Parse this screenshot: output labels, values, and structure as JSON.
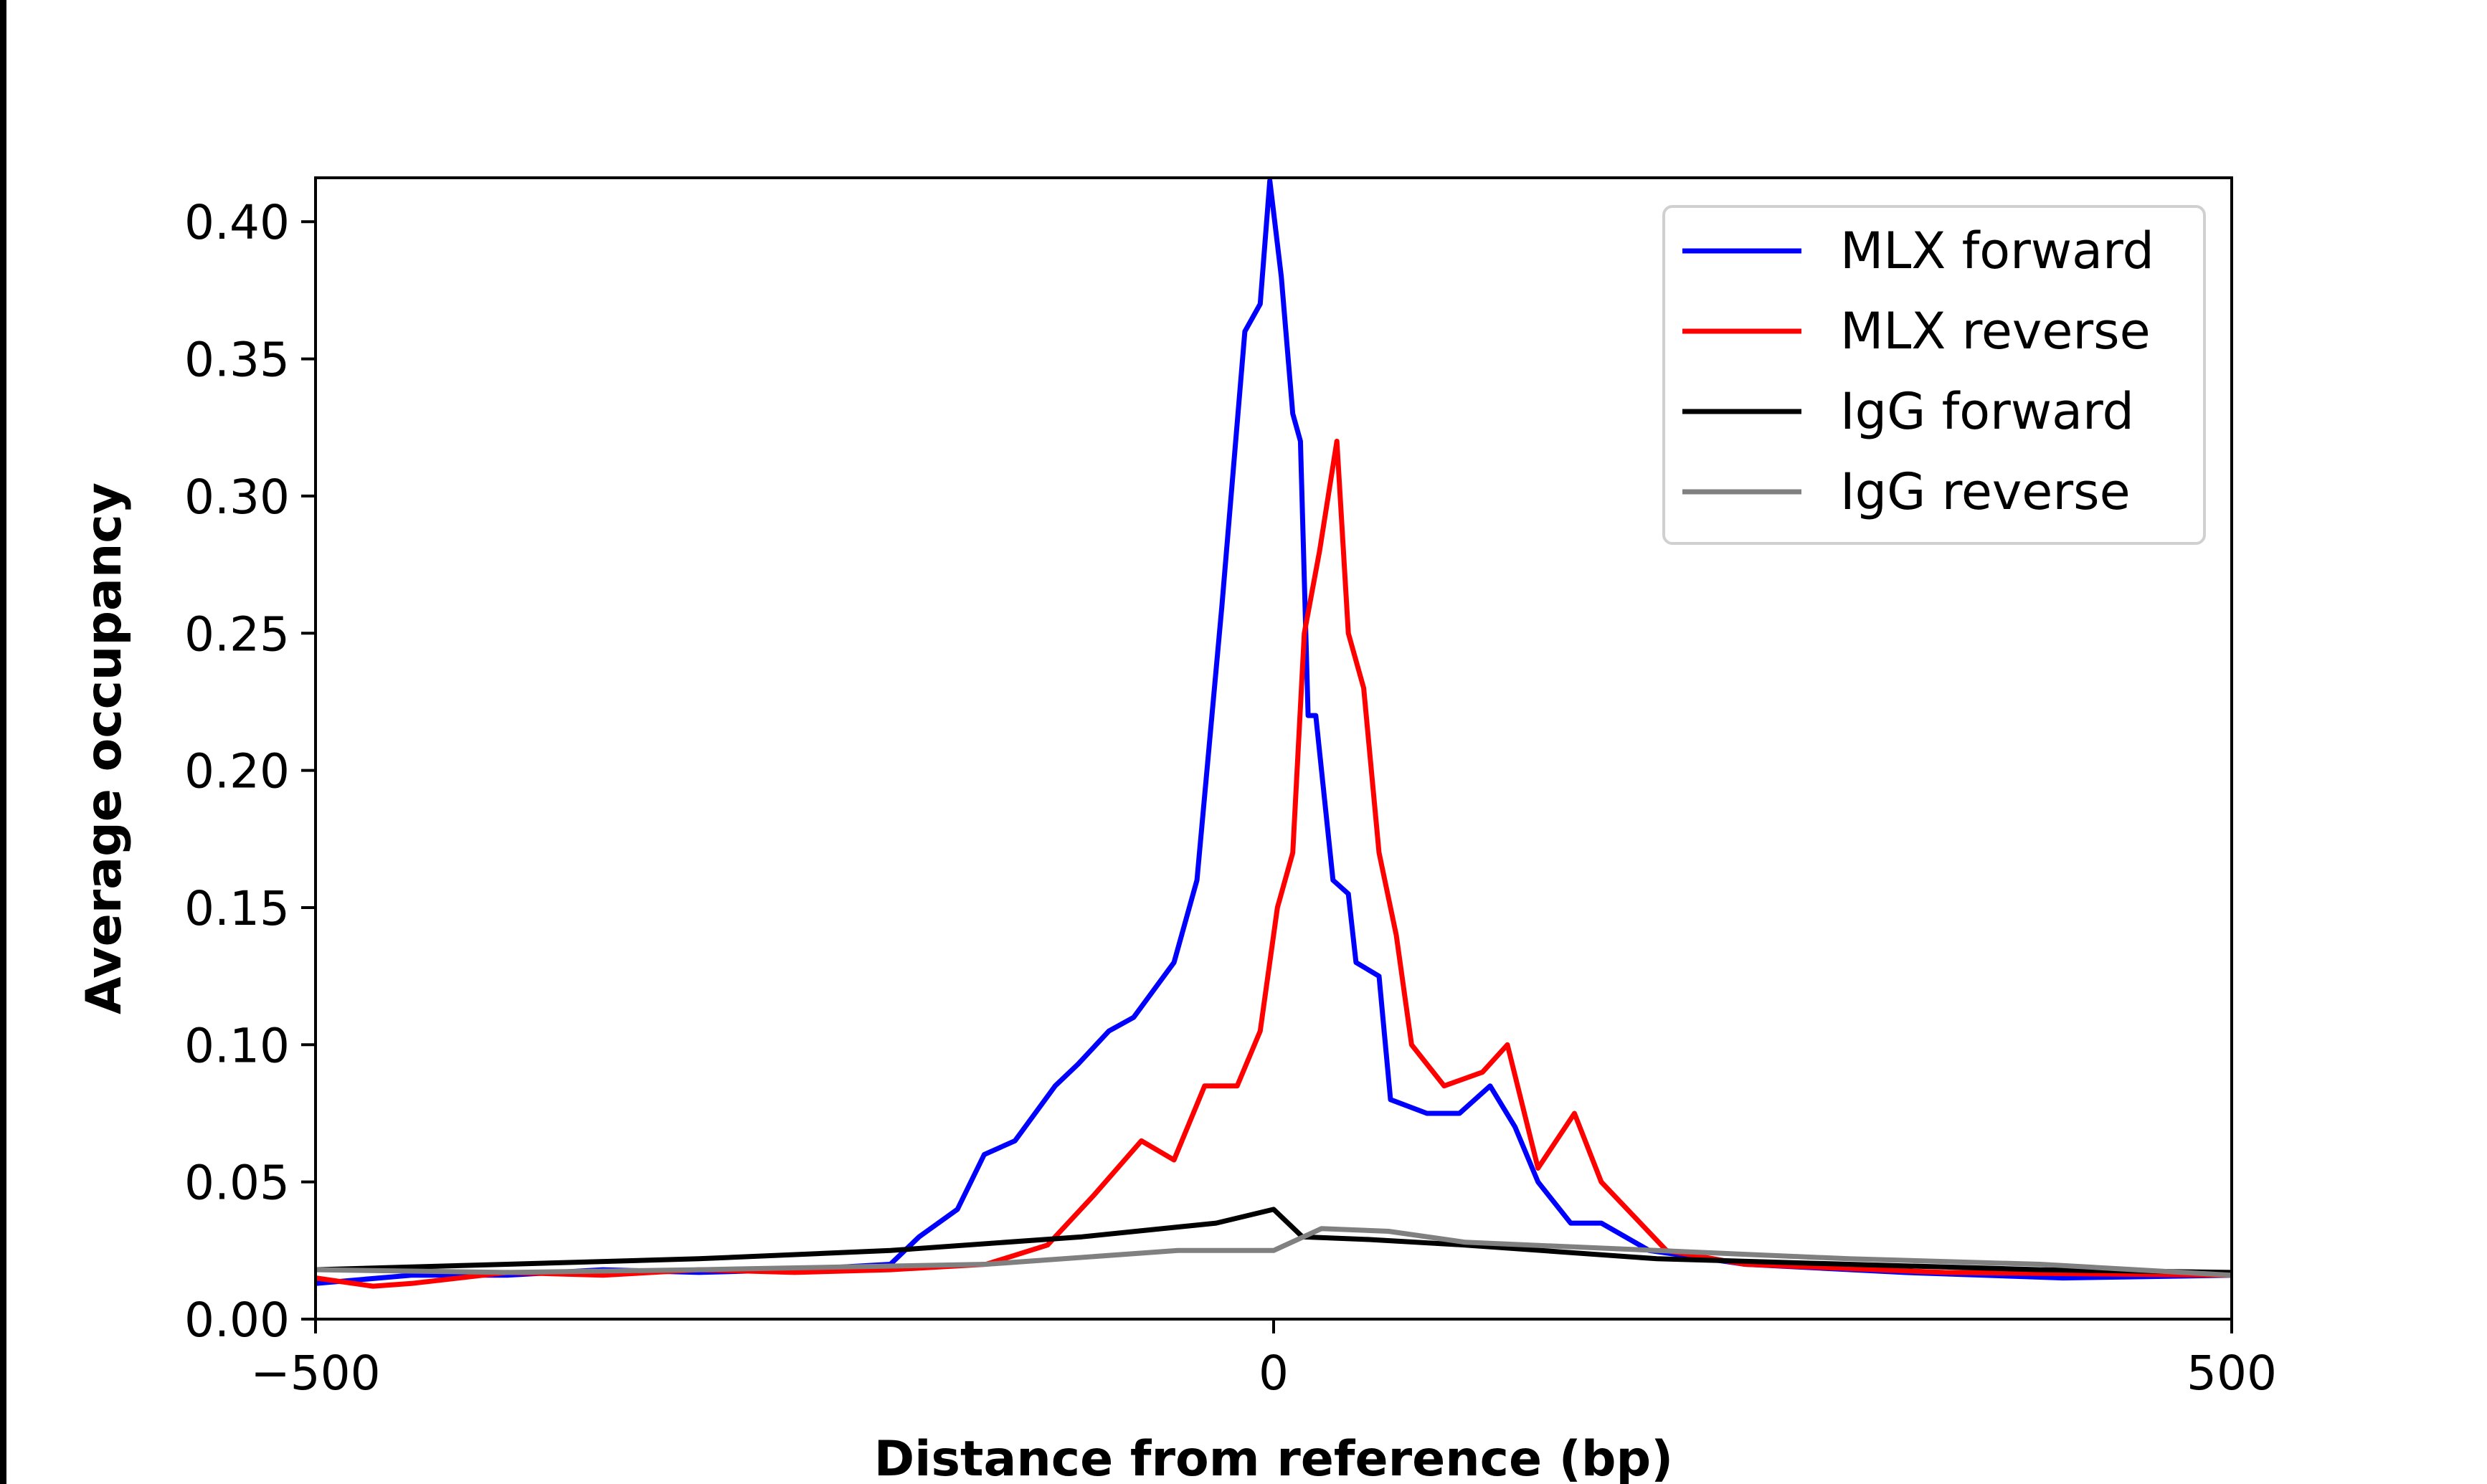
{
  "chart_data": {
    "type": "line",
    "title": "",
    "xlabel": "Distance from reference (bp)",
    "ylabel": "Average occupancy",
    "xlim": [
      -500,
      500
    ],
    "ylim": [
      0,
      0.416
    ],
    "xticks": [
      -500,
      0,
      500
    ],
    "xtick_labels": [
      "−500",
      "0",
      "500"
    ],
    "yticks": [
      0,
      0.05,
      0.1,
      0.15,
      0.2,
      0.25,
      0.3,
      0.35,
      0.4
    ],
    "ytick_labels": [
      "0.00",
      "0.05",
      "0.10",
      "0.15",
      "0.20",
      "0.25",
      "0.30",
      "0.35",
      "0.40"
    ],
    "grid": false,
    "legend_position": "top-right",
    "series": [
      {
        "name": "MLX forward",
        "color": "#0000ff",
        "x": [
          -500,
          -450,
          -400,
          -350,
          -300,
          -250,
          -200,
          -185,
          -165,
          -151,
          -135,
          -114,
          -102,
          -86,
          -73,
          -52,
          -40,
          -27,
          -15,
          -7,
          -2,
          4,
          10,
          14,
          18,
          22,
          31,
          39,
          43,
          55,
          61,
          80,
          97,
          113,
          126,
          138,
          155,
          171,
          196,
          246,
          329,
          412,
          500
        ],
        "y": [
          0.013,
          0.016,
          0.016,
          0.018,
          0.017,
          0.018,
          0.02,
          0.03,
          0.04,
          0.06,
          0.065,
          0.085,
          0.093,
          0.105,
          0.11,
          0.13,
          0.16,
          0.26,
          0.36,
          0.37,
          0.415,
          0.38,
          0.33,
          0.32,
          0.22,
          0.22,
          0.16,
          0.155,
          0.13,
          0.125,
          0.08,
          0.075,
          0.075,
          0.085,
          0.07,
          0.05,
          0.035,
          0.035,
          0.025,
          0.02,
          0.017,
          0.015,
          0.016
        ]
      },
      {
        "name": "MLX reverse",
        "color": "#ff0000",
        "x": [
          -500,
          -470,
          -450,
          -400,
          -350,
          -300,
          -250,
          -200,
          -150,
          -118,
          -94,
          -69,
          -52,
          -36,
          -19,
          -7,
          2,
          10,
          16,
          24,
          33,
          39,
          47,
          55,
          64,
          72,
          89,
          109,
          122,
          138,
          157,
          171,
          205,
          246,
          350,
          500
        ],
        "y": [
          0.015,
          0.012,
          0.013,
          0.017,
          0.016,
          0.018,
          0.017,
          0.018,
          0.02,
          0.027,
          0.045,
          0.065,
          0.058,
          0.085,
          0.085,
          0.105,
          0.15,
          0.17,
          0.25,
          0.28,
          0.32,
          0.25,
          0.23,
          0.17,
          0.14,
          0.1,
          0.085,
          0.09,
          0.1,
          0.055,
          0.075,
          0.05,
          0.025,
          0.02,
          0.017,
          0.016
        ]
      },
      {
        "name": "IgG forward",
        "color": "#000000",
        "x": [
          -500,
          -400,
          -300,
          -200,
          -100,
          -30,
          0,
          15,
          50,
          100,
          200,
          300,
          400,
          500
        ],
        "y": [
          0.018,
          0.02,
          0.022,
          0.025,
          0.03,
          0.035,
          0.04,
          0.03,
          0.029,
          0.027,
          0.022,
          0.02,
          0.018,
          0.017
        ]
      },
      {
        "name": "IgG reverse",
        "color": "#808080",
        "x": [
          -500,
          -400,
          -300,
          -150,
          -50,
          0,
          25,
          60,
          100,
          200,
          300,
          400,
          500
        ],
        "y": [
          0.018,
          0.017,
          0.018,
          0.02,
          0.025,
          0.025,
          0.033,
          0.032,
          0.028,
          0.025,
          0.022,
          0.02,
          0.016
        ]
      }
    ]
  }
}
